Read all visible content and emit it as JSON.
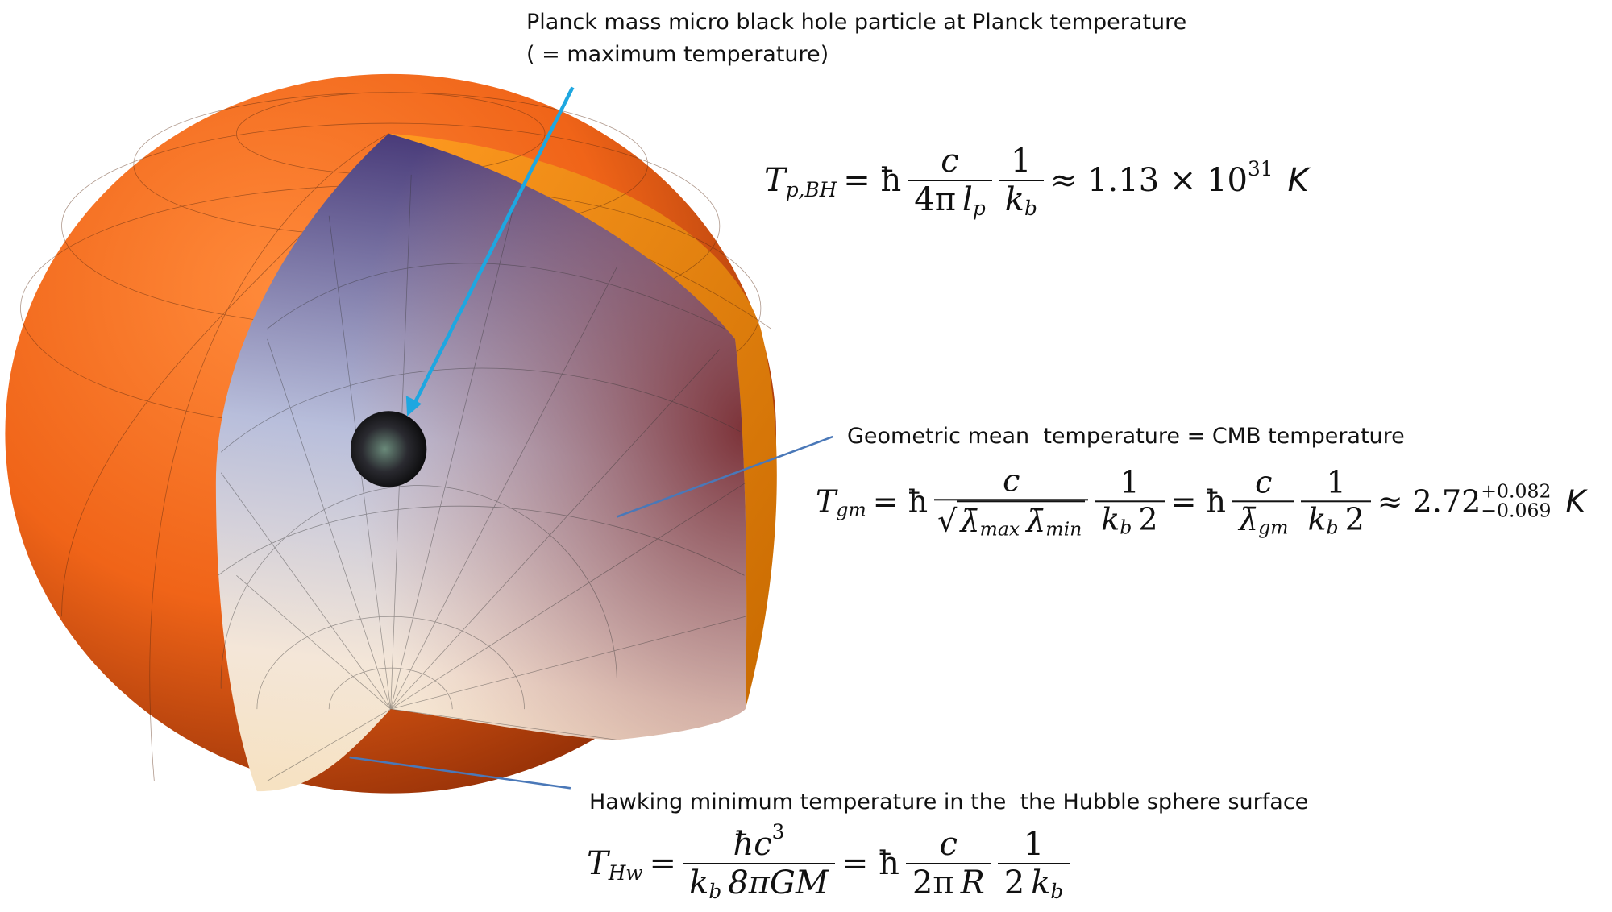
{
  "labels": [
    {
      "lines": [
        "Planck mass micro black hole particle at Planck temperature",
        "( = maximum temperature)"
      ]
    },
    {
      "lines": [
        "Geometric mean  temperature = CMB temperature"
      ]
    },
    {
      "lines": [
        "Hawking minimum temperature in the  the Hubble sphere surface"
      ]
    }
  ],
  "formulas": [
    {
      "tokens": [
        {
          "text": "T",
          "italic": true,
          "sub": "p,BH"
        },
        {
          "text": "= ħ"
        },
        {
          "num": [
            {
              "text": "c",
              "italic": true
            }
          ],
          "den": [
            {
              "text": "4π"
            },
            {
              "text": "l",
              "italic": true,
              "sub": "p"
            }
          ]
        },
        {
          "num": [
            {
              "text": "1"
            }
          ],
          "den": [
            {
              "text": "k",
              "italic": true,
              "sub": "b"
            }
          ]
        },
        {
          "text": "≈ 1.13 × 10",
          "sup": "31"
        },
        {
          "text": "K",
          "sans": true
        }
      ]
    },
    {
      "tokens": [
        {
          "text": "T",
          "italic": true,
          "sub": "gm"
        },
        {
          "text": "= ħ"
        },
        {
          "num": [
            {
              "text": "c",
              "italic": true
            }
          ],
          "den": [
            {
              "sqrt": [
                {
                  "text": "λ̄",
                  "italic": true,
                  "sub": "max"
                },
                {
                  "text": "λ̄",
                  "italic": true,
                  "sub": "min"
                }
              ]
            }
          ]
        },
        {
          "num": [
            {
              "text": "1"
            }
          ],
          "den": [
            {
              "text": "k",
              "italic": true,
              "sub": "b"
            },
            {
              "text": "2"
            }
          ]
        },
        {
          "text": "= ħ"
        },
        {
          "num": [
            {
              "text": "c",
              "italic": true
            }
          ],
          "den": [
            {
              "text": "λ̄",
              "italic": true,
              "sub": "gm"
            }
          ]
        },
        {
          "num": [
            {
              "text": "1"
            }
          ],
          "den": [
            {
              "text": "k",
              "italic": true,
              "sub": "b"
            },
            {
              "text": "2"
            }
          ]
        },
        {
          "text": "≈ 2.72",
          "sup": "+0.082",
          "sub": "−0.069"
        },
        {
          "text": "K",
          "sans": true
        }
      ]
    },
    {
      "tokens": [
        {
          "text": "T",
          "italic": true,
          "sub": "Hw"
        },
        {
          "text": "="
        },
        {
          "num": [
            {
              "text": "ħc",
              "italic": true,
              "sup": "3"
            }
          ],
          "den": [
            {
              "text": "k",
              "italic": true,
              "sub": "b"
            },
            {
              "text": "8πGM",
              "italic": true
            }
          ]
        },
        {
          "text": "= ħ"
        },
        {
          "num": [
            {
              "text": "c",
              "italic": true
            }
          ],
          "den": [
            {
              "text": "2π"
            },
            {
              "text": "R",
              "italic": true
            }
          ]
        },
        {
          "num": [
            {
              "text": "1"
            }
          ],
          "den": [
            {
              "text": "2"
            },
            {
              "text": "k",
              "italic": true,
              "sub": "b"
            }
          ]
        }
      ]
    }
  ]
}
